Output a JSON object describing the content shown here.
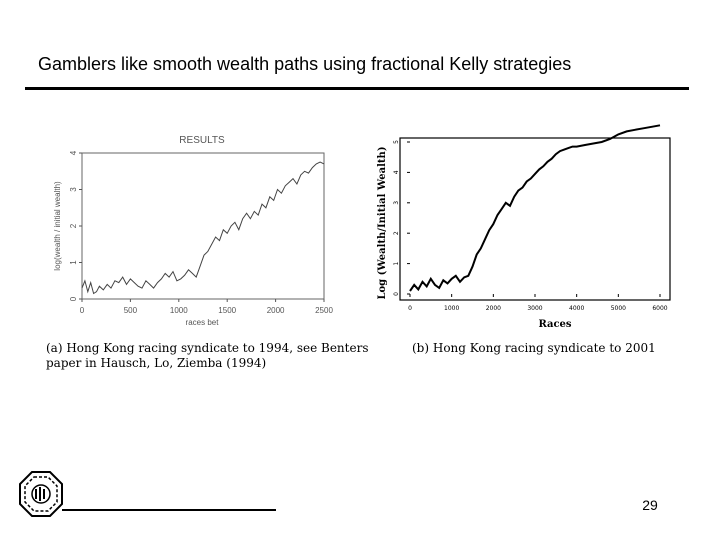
{
  "slide": {
    "title": "Gamblers like smooth wealth paths using fractional Kelly strategies",
    "page_number": "29"
  },
  "chart_data": [
    {
      "type": "line",
      "title": "RESULTS",
      "xlabel": "races bet",
      "ylabel": "log(wealth / initial wealth)",
      "xlim": [
        0,
        2500
      ],
      "ylim": [
        0,
        4
      ],
      "xticks": [
        "0",
        "500",
        "1000",
        "1500",
        "2000",
        "2500"
      ],
      "yticks": [
        "0",
        "1",
        "2",
        "3",
        "4"
      ],
      "grid": false,
      "caption": [
        "(a) Hong Kong racing syndicate to 1994, see Benters",
        "paper in Hausch, Lo, Ziemba (1994)"
      ],
      "series": [
        {
          "x": [
            0,
            30,
            60,
            90,
            120,
            150,
            180,
            220,
            260,
            300,
            340,
            380,
            420,
            460,
            500,
            540,
            580,
            620,
            660,
            700,
            740,
            780,
            820,
            860,
            900,
            940,
            980,
            1020,
            1060,
            1100,
            1140,
            1180,
            1220,
            1260,
            1300,
            1340,
            1380,
            1420,
            1460,
            1500,
            1540,
            1580,
            1620,
            1660,
            1700,
            1740,
            1780,
            1820,
            1860,
            1900,
            1940,
            1980,
            2020,
            2060,
            2100,
            2140,
            2180,
            2220,
            2260,
            2300,
            2340,
            2380,
            2420,
            2460,
            2500
          ],
          "y": [
            0.3,
            0.5,
            0.2,
            0.45,
            0.15,
            0.2,
            0.35,
            0.25,
            0.4,
            0.3,
            0.5,
            0.45,
            0.6,
            0.4,
            0.55,
            0.45,
            0.35,
            0.3,
            0.5,
            0.4,
            0.3,
            0.45,
            0.55,
            0.7,
            0.6,
            0.75,
            0.5,
            0.55,
            0.65,
            0.8,
            0.7,
            0.6,
            0.9,
            1.2,
            1.3,
            1.5,
            1.7,
            1.6,
            1.9,
            1.8,
            2.0,
            2.1,
            1.9,
            2.2,
            2.35,
            2.2,
            2.4,
            2.3,
            2.6,
            2.5,
            2.8,
            2.7,
            3.0,
            2.9,
            3.1,
            3.2,
            3.3,
            3.15,
            3.4,
            3.5,
            3.45,
            3.6,
            3.7,
            3.75,
            3.7
          ]
        }
      ]
    },
    {
      "type": "line",
      "title": "",
      "xlabel": "Races",
      "ylabel": "Log (Wealth/Initial Wealth)",
      "xlim": [
        0,
        6000
      ],
      "ylim": [
        0,
        5
      ],
      "xticks": [
        "0",
        "1000",
        "2000",
        "3000",
        "4000",
        "5000",
        "6000"
      ],
      "yticks": [
        "0",
        "1",
        "2",
        "3",
        "4",
        "5"
      ],
      "grid": false,
      "caption": [
        "(b) Hong Kong racing syndicate to 2001"
      ],
      "series": [
        {
          "x": [
            0,
            100,
            200,
            300,
            400,
            500,
            600,
            700,
            800,
            900,
            1000,
            1100,
            1200,
            1300,
            1400,
            1500,
            1600,
            1700,
            1800,
            1900,
            2000,
            2100,
            2200,
            2300,
            2400,
            2500,
            2600,
            2700,
            2800,
            2900,
            3000,
            3100,
            3200,
            3300,
            3400,
            3500,
            3600,
            3700,
            3800,
            3900,
            4000,
            4200,
            4400,
            4600,
            4800,
            5000,
            5200,
            5400,
            5600,
            5800,
            6000
          ],
          "y": [
            0.1,
            0.3,
            0.15,
            0.4,
            0.25,
            0.5,
            0.3,
            0.2,
            0.45,
            0.35,
            0.5,
            0.6,
            0.4,
            0.55,
            0.6,
            0.9,
            1.3,
            1.5,
            1.8,
            2.1,
            2.3,
            2.6,
            2.8,
            3.0,
            2.9,
            3.2,
            3.4,
            3.5,
            3.7,
            3.8,
            3.95,
            4.1,
            4.2,
            4.35,
            4.45,
            4.6,
            4.7,
            4.75,
            4.8,
            4.85,
            4.85,
            4.9,
            4.95,
            5.0,
            5.1,
            5.25,
            5.35,
            5.4,
            5.45,
            5.5,
            5.55
          ]
        }
      ]
    }
  ]
}
